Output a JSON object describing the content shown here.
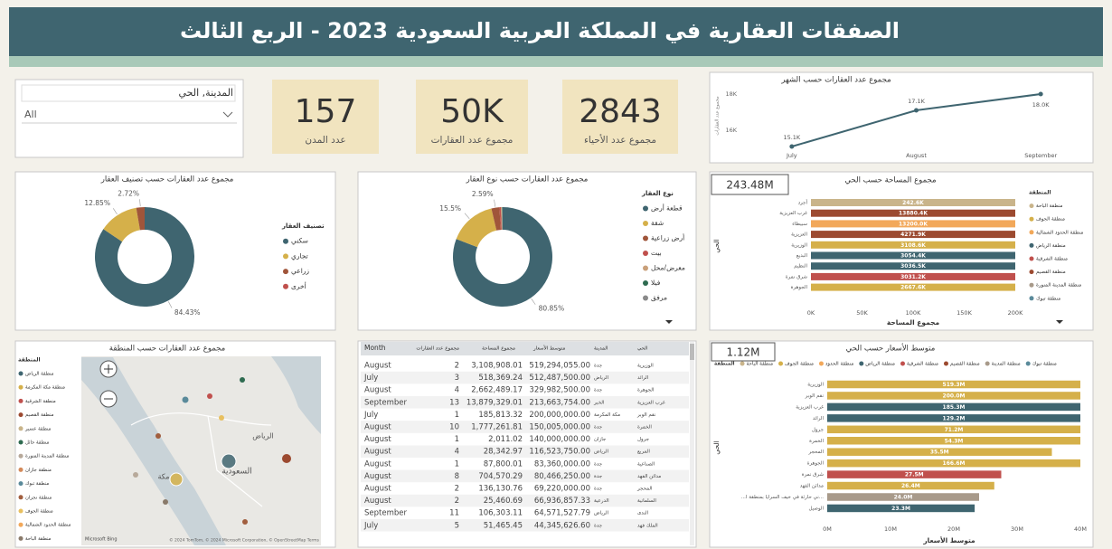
{
  "header": {
    "title": "الصفقات العقارية في المملكة العربية السعودية 2023 - الربع الثالث"
  },
  "filter": {
    "label": "المدينة, الحي",
    "value": "All"
  },
  "kpis": [
    {
      "value": 157,
      "label": "عدد المدن"
    },
    {
      "value": "50K",
      "label": "مجموع عدد العقارات"
    },
    {
      "value": 2843,
      "label": "مجموع عدد الأحياء"
    }
  ],
  "chart_data": [
    {
      "type": "line",
      "title": "مجموع عدد العقارات حسب الشهر",
      "y_label": "مجموع عدد العقارات",
      "categories": [
        "July",
        "August",
        "September"
      ],
      "values": [
        15.1,
        17.1,
        18.0
      ],
      "value_labels": [
        "15.1K",
        "17.1K",
        "18.0K"
      ],
      "color": "#3f6570",
      "ylim": [
        15,
        18.2
      ],
      "yticks": [
        {
          "value": 16,
          "label": "16K"
        },
        {
          "value": 18,
          "label": "18K"
        }
      ]
    },
    {
      "type": "pie",
      "title": "مجموع عدد العقارات حسب تصنيف العقار",
      "legend_title": "تصنيف العقار",
      "categories": [
        "سكني",
        "تجاري",
        "زراعي",
        "أخرى"
      ],
      "values": [
        84.43,
        12.85,
        2.72,
        0
      ],
      "value_labels": [
        "84.43%",
        "12.85%",
        "2.72%",
        null
      ],
      "colors": [
        "#3f6570",
        "#d5b04a",
        "#a0553a",
        "#c0504d"
      ]
    },
    {
      "type": "pie",
      "title": "مجموع عدد العقارات حسب نوع العقار",
      "legend_title": "نوع العقار",
      "categories": [
        "قطعة أرض",
        "شقة",
        "أرض زراعية",
        "بيت",
        "معرض/محل",
        "فيلا",
        "مرفق"
      ],
      "values": [
        80.85,
        15.5,
        2.59,
        0.5,
        0.3,
        0.16,
        0.1
      ],
      "value_labels": [
        "80.85%",
        "15.5%",
        "2.59%",
        null,
        null,
        null,
        null
      ],
      "colors": [
        "#3f6570",
        "#d5b04a",
        "#a0553a",
        "#c0504d",
        "#c9a07a",
        "#2e6b50",
        "#8a8a8a"
      ]
    },
    {
      "type": "bar",
      "orientation": "horizontal",
      "title": "مجموع المساحة حسب الحي",
      "card": "243.48M",
      "x_label": "مجموع المساحة",
      "y_label": "الحي",
      "categories": [
        "أجرد",
        "غرب العزيزية",
        "سبيطاء",
        "العزيزية",
        "الوزيرية",
        "البديع",
        "النظيم",
        "شرق نمرة",
        "الجوهرة"
      ],
      "values": [
        242.6,
        13880.4,
        13200.0,
        4271.9,
        3108.6,
        3054.4,
        3036.5,
        3031.2,
        2667.6
      ],
      "value_labels": [
        "242.6K",
        "13880.4K",
        "13200.0K",
        "4271.9K",
        "3108.6K",
        "3054.4K",
        "3036.5K",
        "3031.2K",
        "2667.6K"
      ],
      "colors": [
        "#c9b48a",
        "#9c4a30",
        "#f2a85a",
        "#9c4a30",
        "#d5b04a",
        "#3f6570",
        "#3f6570",
        "#c0504d",
        "#d5b04a"
      ],
      "xlim": [
        0,
        200
      ],
      "xticks": [
        {
          "value": 0,
          "label": "0K"
        },
        {
          "value": 50,
          "label": "50K"
        },
        {
          "value": 100,
          "label": "100K"
        },
        {
          "value": 150,
          "label": "150K"
        },
        {
          "value": 200,
          "label": "200K"
        }
      ],
      "legend": {
        "title": "المنطقة",
        "items": [
          {
            "name": "منطقة الباحة",
            "color": "#c9b48a"
          },
          {
            "name": "منطقة الجوف",
            "color": "#d5b04a"
          },
          {
            "name": "منطقة الحدود الشمالية",
            "color": "#f2a85a"
          },
          {
            "name": "منطقة الرياض",
            "color": "#3f6570"
          },
          {
            "name": "منطقة الشرقية",
            "color": "#c0504d"
          },
          {
            "name": "منطقة القصيم",
            "color": "#9c4a30"
          },
          {
            "name": "منطقة المدينة المنورة",
            "color": "#a89a8a"
          },
          {
            "name": "منطقة تبوك",
            "color": "#5a8a9a"
          }
        ]
      }
    },
    {
      "type": "bar",
      "orientation": "horizontal",
      "title": "متوسط الأسعار حسب الحي",
      "card": "1.12M",
      "x_label": "متوسط الأسعار",
      "y_label": "الحي",
      "categories": [
        "الوزيرية",
        "نقم الوبر",
        "غرب العزيزية",
        "الرائد",
        "جرول",
        "الخمرة",
        "المحجر",
        "الجوهرة",
        "شرق نمرة",
        "مدائن الفهد",
        "...ني حارثة في خيف السرايا بمنطقة ا...",
        "الوصيل"
      ],
      "values": [
        519.3,
        200.0,
        185.3,
        129.2,
        71.2,
        54.3,
        35.5,
        166.6,
        27.5,
        26.4,
        24.0,
        23.3
      ],
      "value_labels": [
        "519.3M",
        "200.0M",
        "185.3M",
        "129.2M",
        "71.2M",
        "54.3M",
        "35.5M",
        "166.6M",
        "27.5M",
        "26.4M",
        "24.0M",
        "23.3M"
      ],
      "colors": [
        "#d5b04a",
        "#d5b04a",
        "#3f6570",
        "#3f6570",
        "#d5b04a",
        "#d5b04a",
        "#d5b04a",
        "#d5b04a",
        "#c0504d",
        "#d5b04a",
        "#a89a8a",
        "#3f6570"
      ],
      "xlim": [
        0,
        40
      ],
      "xticks": [
        {
          "value": 0,
          "label": "0M"
        },
        {
          "value": 10,
          "label": "10M"
        },
        {
          "value": 20,
          "label": "20M"
        },
        {
          "value": 30,
          "label": "30M"
        },
        {
          "value": 40,
          "label": "40M"
        }
      ],
      "legend": {
        "title": "المنطقة",
        "items": [
          {
            "name": "منطقة الباحة",
            "color": "#c9b48a"
          },
          {
            "name": "منطقة الجوف",
            "color": "#d5b04a"
          },
          {
            "name": "منطقة الحدود",
            "color": "#f2a85a"
          },
          {
            "name": "منطقة الرياض",
            "color": "#3f6570"
          },
          {
            "name": "منطقة الشرقية",
            "color": "#c0504d"
          },
          {
            "name": "منطقة القصيم",
            "color": "#9c4a30"
          },
          {
            "name": "منطقة المدينة",
            "color": "#a89a8a"
          },
          {
            "name": "منطقة تبوك",
            "color": "#5a8a9a"
          }
        ]
      }
    }
  ],
  "map": {
    "title": "مجموع عدد العقارات حسب المنطقة",
    "legend": {
      "title": "المنطقة",
      "items": [
        {
          "name": "منطقة الرياض",
          "color": "#3f6570"
        },
        {
          "name": "منطقة مكة المكرمة",
          "color": "#d5b04a"
        },
        {
          "name": "منطقة الشرقية",
          "color": "#c0504d"
        },
        {
          "name": "منطقة القصيم",
          "color": "#9c4a30"
        },
        {
          "name": "منطقة عسير",
          "color": "#c9b48a"
        },
        {
          "name": "منطقة حائل",
          "color": "#2e6b50"
        },
        {
          "name": "منطقة المدينة المنورة",
          "color": "#b7a99a"
        },
        {
          "name": "منطقة جازان",
          "color": "#d48a5a"
        },
        {
          "name": "منطقة تبوك",
          "color": "#5a8a9a"
        },
        {
          "name": "منطقة نجران",
          "color": "#a15e3e"
        },
        {
          "name": "منطقة الجوف",
          "color": "#e8c060"
        },
        {
          "name": "منطقة الحدود الشمالية",
          "color": "#f2a85a"
        },
        {
          "name": "منطقة الباحة",
          "color": "#8a7a6a"
        }
      ]
    },
    "places": [
      "الرياض",
      "السعودية",
      "مكة"
    ],
    "attribution": "Microsoft Bing",
    "terms": "© 2024 TomTom, © 2024 Microsoft Corporation, © OpenStreetMap Terms"
  },
  "table": {
    "columns": [
      "Month",
      "مجموع عدد العقارات",
      "مجموع المساحة",
      "متوسط الأسعار",
      "المدينة",
      "الحي"
    ],
    "rows": [
      [
        "August",
        2,
        "3,108,908.01",
        "519,294,055.00",
        "جدة",
        "الوزيرية"
      ],
      [
        "July",
        3,
        "518,369.24",
        "512,487,500.00",
        "الرياض",
        "الرائد"
      ],
      [
        "August",
        4,
        "2,662,489.17",
        "329,982,500.00",
        "جدة",
        "الجوهرة"
      ],
      [
        "September",
        13,
        "13,879,329.01",
        "213,663,754.00",
        "الخبر",
        "غرب العزيزية"
      ],
      [
        "July",
        1,
        "185,813.32",
        "200,000,000.00",
        "مكة المكرمة",
        "نقم الوبر"
      ],
      [
        "August",
        10,
        "1,777,261.81",
        "150,005,000.00",
        "جدة",
        "الخمرة"
      ],
      [
        "August",
        1,
        "2,011.02",
        "140,000,000.00",
        "جازان",
        "جرول"
      ],
      [
        "August",
        4,
        "28,342.97",
        "116,523,750.00",
        "الرياض",
        "المربع"
      ],
      [
        "August",
        1,
        "87,800.01",
        "83,360,000.00",
        "جدة",
        "الصناعية"
      ],
      [
        "August",
        8,
        "704,570.29",
        "80,466,250.00",
        "جدة",
        "مدائن الفهد"
      ],
      [
        "August",
        2,
        "136,130.76",
        "69,220,000.00",
        "جدة",
        "المحجر"
      ],
      [
        "August",
        2,
        "25,460.69",
        "66,936,857.33",
        "الدرعية",
        "السلمانية"
      ],
      [
        "September",
        11,
        "106,303.11",
        "64,571,527.79",
        "الرياض",
        "الندى"
      ],
      [
        "July",
        5,
        "51,465.45",
        "44,345,626.60",
        "جدة",
        "الملك فهد"
      ]
    ]
  }
}
